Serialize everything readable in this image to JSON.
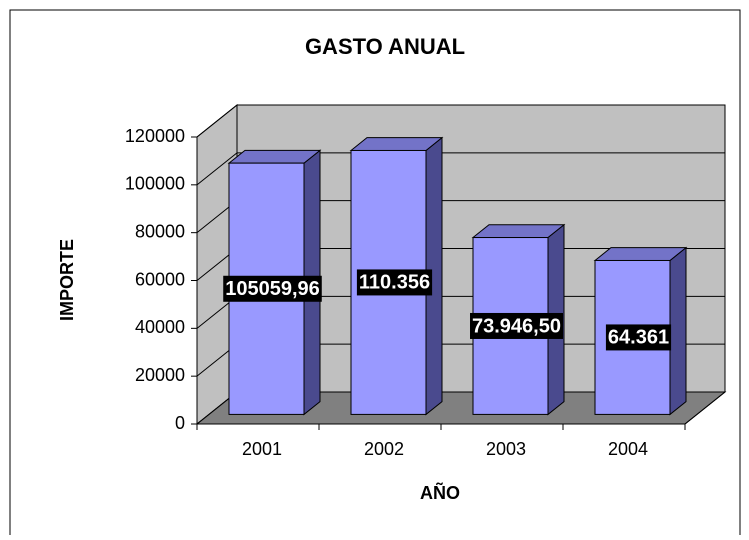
{
  "chart_data": {
    "type": "bar3d",
    "title": "GASTO ANUAL",
    "x_label": "AÑO",
    "y_label": "IMPORTE",
    "categories": [
      "2001",
      "2002",
      "2003",
      "2004"
    ],
    "values": [
      105059.96,
      110356,
      73946.5,
      64361
    ],
    "value_labels": [
      "105059,96",
      "110.356",
      "73.946,50",
      "64.361"
    ],
    "color": "#9999ff",
    "ylim": [
      0,
      120000
    ],
    "yticks": [
      0,
      20000,
      40000,
      60000,
      80000,
      100000,
      120000
    ],
    "grid": true
  }
}
